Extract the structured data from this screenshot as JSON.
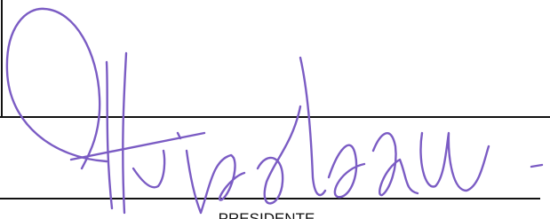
{
  "signature_block": {
    "role": "PRESIDENTE"
  }
}
